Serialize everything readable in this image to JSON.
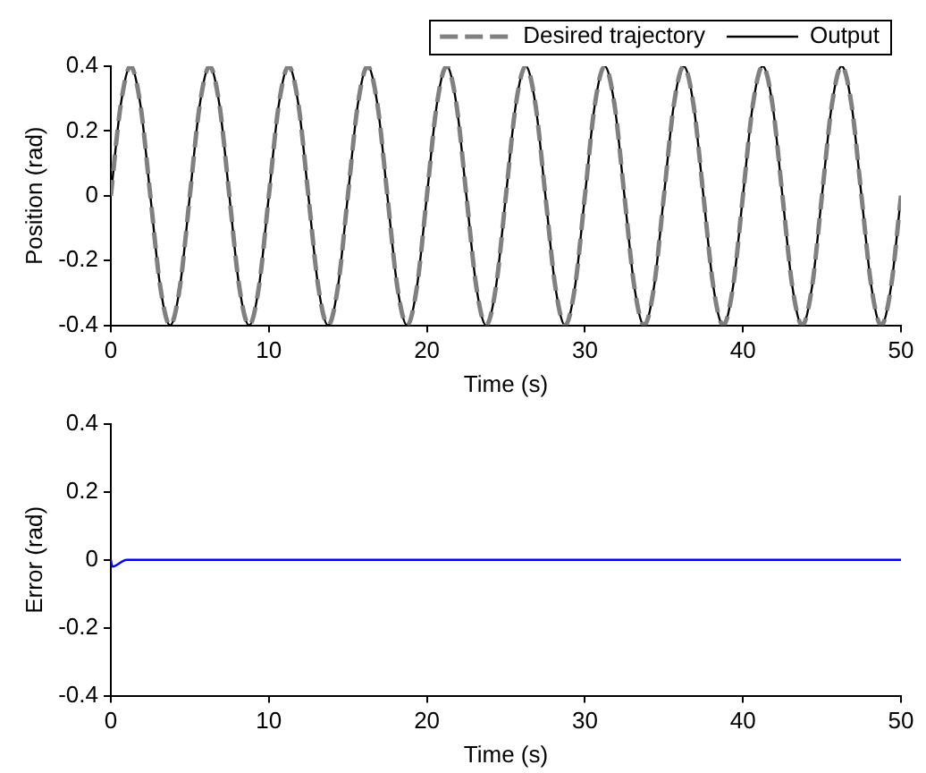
{
  "chart_data": [
    {
      "type": "line",
      "xlabel": "Time (s)",
      "ylabel": "Position (rad)",
      "xlim": [
        0,
        50
      ],
      "xticks": [
        0,
        10,
        20,
        30,
        40,
        50
      ],
      "ylim": [
        -0.4,
        0.4
      ],
      "yticks": [
        -0.4,
        -0.2,
        0,
        0.2,
        0.4
      ],
      "grid": false,
      "legend": "top right",
      "marker": "none",
      "x": [
        0,
        0.625,
        1.25,
        1.875,
        2.5,
        3.125,
        3.75,
        4.375,
        5,
        5.625,
        6.25,
        6.875,
        7.5,
        8.125,
        8.75,
        9.375,
        10,
        10.625,
        11.25,
        11.875,
        12.5,
        13.125,
        13.75,
        14.375,
        15,
        15.625,
        16.25,
        16.875,
        17.5,
        18.125,
        18.75,
        19.375,
        20,
        20.625,
        21.25,
        21.875,
        22.5,
        23.125,
        23.75,
        24.375,
        25,
        25.625,
        26.25,
        26.875,
        27.5,
        28.125,
        28.75,
        29.375,
        30,
        30.625,
        31.25,
        31.875,
        32.5,
        33.125,
        33.75,
        34.375,
        35,
        35.625,
        36.25,
        36.875,
        37.5,
        38.125,
        38.75,
        39.375,
        40,
        40.625,
        41.25,
        41.875,
        42.5,
        43.125,
        43.75,
        44.375,
        45,
        45.625,
        46.25,
        46.875,
        47.5,
        48.125,
        48.75,
        49.375,
        50
      ],
      "series": [
        {
          "name": "Desired trajectory",
          "color": "#808080",
          "line_style": "dashed",
          "values": [
            0,
            0.28,
            0.4,
            0.28,
            0,
            -0.28,
            -0.4,
            -0.28,
            0,
            0.28,
            0.4,
            0.28,
            0,
            -0.28,
            -0.4,
            -0.28,
            0,
            0.28,
            0.4,
            0.28,
            0,
            -0.28,
            -0.4,
            -0.28,
            0,
            0.28,
            0.4,
            0.28,
            0,
            -0.28,
            -0.4,
            -0.28,
            0,
            0.28,
            0.4,
            0.28,
            0,
            -0.28,
            -0.4,
            -0.28,
            0,
            0.28,
            0.4,
            0.28,
            0,
            -0.28,
            -0.4,
            -0.28,
            0,
            0.28,
            0.4,
            0.28,
            0,
            -0.28,
            -0.4,
            -0.28,
            0,
            0.28,
            0.4,
            0.28,
            0,
            -0.28,
            -0.4,
            -0.28,
            0,
            0.28,
            0.4,
            0.28,
            0,
            -0.28,
            -0.4,
            -0.28,
            0,
            0.28,
            0.4,
            0.28,
            0,
            -0.28,
            -0.4,
            -0.28,
            0
          ]
        },
        {
          "name": "Output",
          "color": "#000000",
          "line_style": "solid",
          "values": [
            0,
            0.28,
            0.4,
            0.28,
            0,
            -0.28,
            -0.4,
            -0.28,
            0,
            0.28,
            0.4,
            0.28,
            0,
            -0.28,
            -0.4,
            -0.28,
            0,
            0.28,
            0.4,
            0.28,
            0,
            -0.28,
            -0.4,
            -0.28,
            0,
            0.28,
            0.4,
            0.28,
            0,
            -0.28,
            -0.4,
            -0.28,
            0,
            0.28,
            0.4,
            0.28,
            0,
            -0.28,
            -0.4,
            -0.28,
            0,
            0.28,
            0.4,
            0.28,
            0,
            -0.28,
            -0.4,
            -0.28,
            0,
            0.28,
            0.4,
            0.28,
            0,
            -0.28,
            -0.4,
            -0.28,
            0,
            0.28,
            0.4,
            0.28,
            0,
            -0.28,
            -0.4,
            -0.28,
            0,
            0.28,
            0.4,
            0.28,
            0,
            -0.28,
            -0.4,
            -0.28,
            0,
            0.28,
            0.4,
            0.28,
            0,
            -0.28,
            -0.4,
            -0.28,
            0
          ]
        }
      ]
    },
    {
      "type": "line",
      "xlabel": "Time (s)",
      "ylabel": "Error (rad)",
      "xlim": [
        0,
        50
      ],
      "xticks": [
        0,
        10,
        20,
        30,
        40,
        50
      ],
      "ylim": [
        -0.4,
        0.4
      ],
      "yticks": [
        -0.4,
        -0.2,
        0,
        0.2,
        0.4
      ],
      "grid": false,
      "legend": false,
      "marker": "none",
      "x": [
        0,
        0.1,
        1,
        50
      ],
      "series": [
        {
          "color": "#0000ff",
          "values": [
            0,
            -0.02,
            0,
            0
          ]
        }
      ]
    }
  ]
}
